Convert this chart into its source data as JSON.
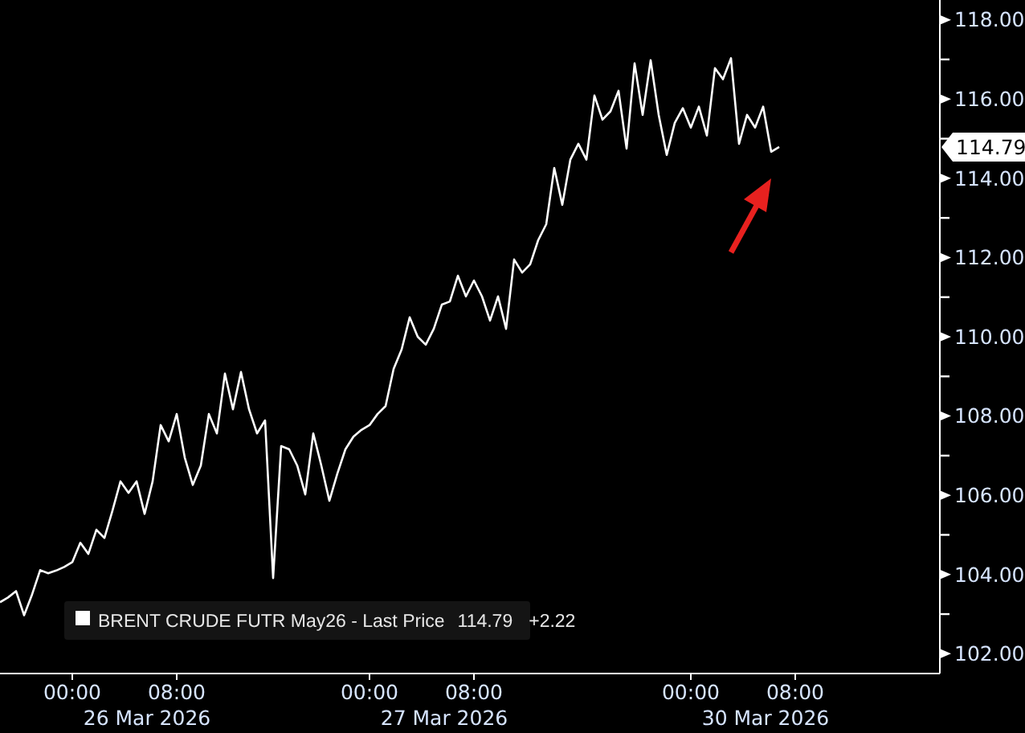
{
  "chart_data": {
    "type": "line",
    "categories": [
      null,
      null,
      null,
      null,
      null,
      null,
      null,
      null,
      null,
      "00:00",
      null,
      null,
      null,
      null,
      null,
      null,
      null,
      null,
      null,
      null,
      null,
      null,
      "08:00",
      null,
      null,
      null,
      null,
      null,
      null,
      null,
      null,
      null,
      null,
      null,
      null,
      null,
      null,
      null,
      null,
      null,
      null,
      null,
      null,
      null,
      null,
      null,
      "00:00",
      null,
      null,
      null,
      null,
      null,
      null,
      null,
      null,
      null,
      null,
      null,
      null,
      "08:00",
      null,
      null,
      null,
      null,
      null,
      null,
      null,
      null,
      null,
      null,
      null,
      null,
      null,
      null,
      null,
      null,
      null,
      null,
      null,
      null,
      null,
      null,
      null,
      null,
      null,
      null,
      "00:00",
      null,
      null,
      null,
      null,
      null,
      null,
      null,
      null,
      null,
      null,
      null,
      null,
      "08:00",
      null,
      null,
      null,
      null,
      null,
      null,
      null,
      null,
      null,
      null,
      null,
      null,
      null,
      null,
      null,
      null,
      null
    ],
    "series": [
      {
        "name": "BRENT CRUDE FUTR May26 - Last Price",
        "color": "#ffffff",
        "values": [
          103.3,
          103.42,
          103.58,
          102.97,
          103.5,
          104.11,
          104.03,
          104.1,
          104.19,
          104.31,
          104.8,
          104.52,
          105.13,
          104.92,
          105.61,
          106.35,
          106.06,
          106.35,
          105.53,
          106.35,
          107.77,
          107.36,
          108.05,
          106.95,
          106.26,
          106.75,
          108.05,
          107.56,
          109.07,
          108.17,
          109.11,
          108.17,
          107.56,
          107.89,
          103.91,
          107.24,
          107.16,
          106.75,
          106.02,
          107.56,
          106.75,
          105.86,
          106.55,
          107.16,
          107.48,
          107.65,
          107.77,
          108.05,
          108.25,
          109.19,
          109.68,
          110.49,
          110.0,
          109.8,
          110.2,
          110.81,
          110.89,
          111.54,
          111.02,
          111.42,
          111.02,
          110.41,
          111.02,
          110.2,
          111.95,
          111.62,
          111.83,
          112.44,
          112.84,
          114.26,
          113.33,
          114.47,
          114.87,
          114.47,
          116.09,
          115.48,
          115.69,
          116.21,
          114.75,
          116.9,
          115.6,
          116.98,
          115.6,
          114.59,
          115.4,
          115.77,
          115.28,
          115.81,
          115.08,
          116.78,
          116.5,
          117.03,
          114.87,
          115.6,
          115.28,
          115.81,
          114.67,
          114.79,
          null,
          null,
          null,
          null,
          null,
          null,
          null,
          null,
          null,
          null,
          null,
          null,
          null,
          null,
          null,
          null,
          null,
          null,
          null
        ]
      }
    ],
    "ylim": [
      101.5,
      118.5
    ],
    "yticks": [
      {
        "value": 102,
        "label": "102.00"
      },
      {
        "value": 103,
        "label": null
      },
      {
        "value": 104,
        "label": "104.00"
      },
      {
        "value": 105,
        "label": null
      },
      {
        "value": 106,
        "label": "106.00"
      },
      {
        "value": 107,
        "label": null
      },
      {
        "value": 108,
        "label": "108.00"
      },
      {
        "value": 109,
        "label": null
      },
      {
        "value": 110,
        "label": "110.00"
      },
      {
        "value": 111,
        "label": null
      },
      {
        "value": 112,
        "label": "112.00"
      },
      {
        "value": 113,
        "label": null
      },
      {
        "value": 114,
        "label": "114.00"
      },
      {
        "value": 115,
        "label": null
      },
      {
        "value": 116,
        "label": "116.00"
      },
      {
        "value": 117,
        "label": null
      },
      {
        "value": 118,
        "label": "118.00"
      }
    ],
    "annotations": [
      "26 Mar 2026",
      "27 Mar 2026",
      "30 Mar 2026",
      "114.79",
      "114.79",
      "+2.22"
    ],
    "grid": false,
    "legend": "bottom left",
    "marker": "none",
    "line_style": "solid"
  }
}
